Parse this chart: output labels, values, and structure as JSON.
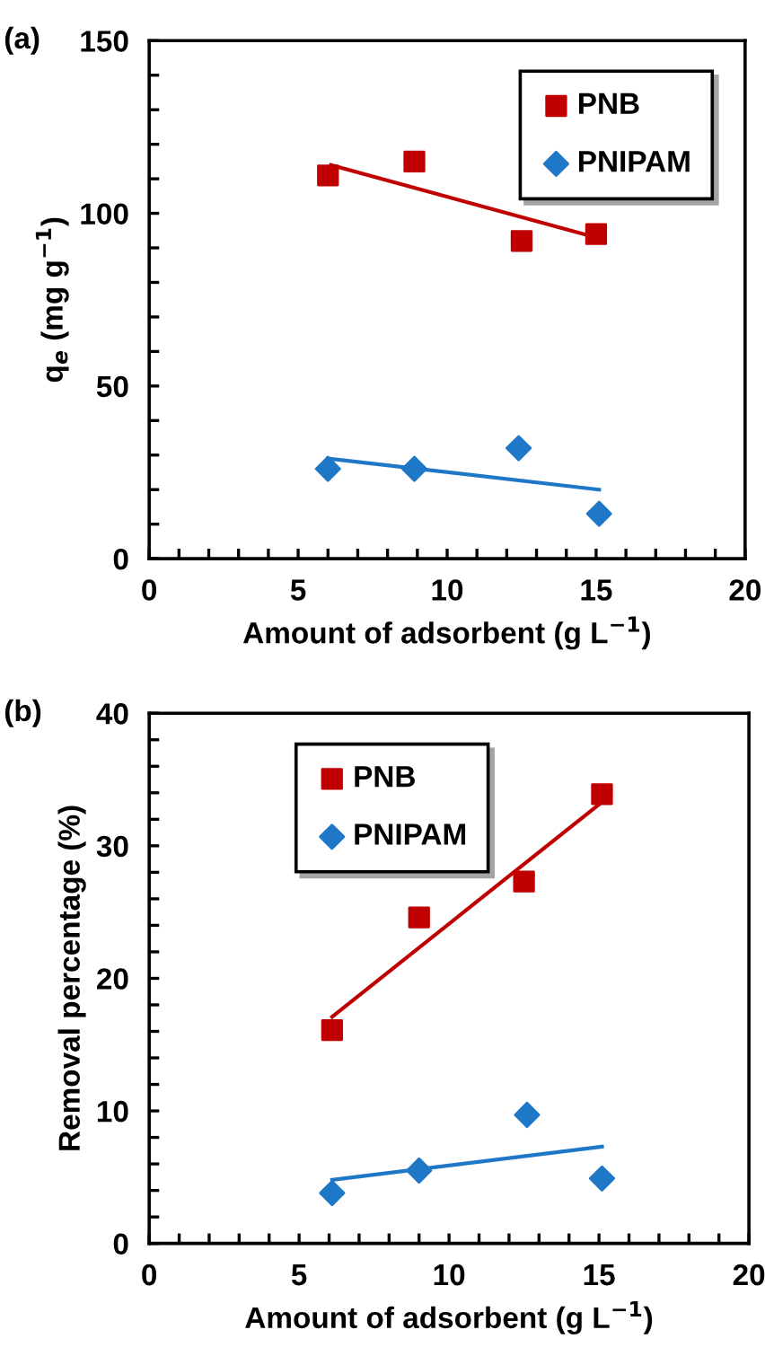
{
  "chart_data": [
    {
      "type": "scatter",
      "xlabel": "Amount of adsorbent (g L$^{−1}$)",
      "ylabel": "q$_{e}$ (mg g$^{−1}$)",
      "annotations": [
        "(a)"
      ],
      "xlim": [
        0,
        20
      ],
      "ylim": [
        0,
        150
      ],
      "xticks": [
        0,
        {
          "value": 1,
          "label": null
        },
        {
          "value": 2,
          "label": null
        },
        {
          "value": 3,
          "label": null
        },
        {
          "value": 4,
          "label": null
        },
        5,
        {
          "value": 6,
          "label": null
        },
        {
          "value": 7,
          "label": null
        },
        {
          "value": 8,
          "label": null
        },
        {
          "value": 9,
          "label": null
        },
        10,
        {
          "value": 11,
          "label": null
        },
        {
          "value": 12,
          "label": null
        },
        {
          "value": 13,
          "label": null
        },
        {
          "value": 14,
          "label": null
        },
        15,
        {
          "value": 16,
          "label": null
        },
        {
          "value": 17,
          "label": null
        },
        {
          "value": 18,
          "label": null
        },
        {
          "value": 19,
          "label": null
        },
        20
      ],
      "yticks": [
        0,
        {
          "value": 10,
          "label": null
        },
        {
          "value": 20,
          "label": null
        },
        {
          "value": 30,
          "label": null
        },
        {
          "value": 40,
          "label": null
        },
        50,
        {
          "value": 60,
          "label": null
        },
        {
          "value": 70,
          "label": null
        },
        {
          "value": 80,
          "label": null
        },
        {
          "value": 90,
          "label": null
        },
        100,
        {
          "value": 110,
          "label": null
        },
        {
          "value": 120,
          "label": null
        },
        {
          "value": 130,
          "label": null
        },
        {
          "value": 140,
          "label": null
        },
        150
      ],
      "grid": false,
      "legend": "top right",
      "series": [
        {
          "name": "PNB",
          "marker": "square",
          "color": "#c00000",
          "x": [
            6.0,
            8.9,
            12.5,
            15.0
          ],
          "values": [
            111,
            115,
            92,
            94
          ]
        },
        {
          "name": "PNIPAM",
          "marker": "diamond",
          "color": "#1f77c8",
          "x": [
            6.0,
            8.9,
            12.4,
            15.1
          ],
          "values": [
            26,
            26,
            32,
            13
          ]
        },
        {
          "type": "line",
          "marker": "none",
          "color": "#c00000",
          "x": [
            6.1,
            15.0
          ],
          "values": [
            114,
            93
          ]
        },
        {
          "type": "line",
          "marker": "none",
          "color": "#1f77c8",
          "x": [
            6.0,
            15.1
          ],
          "values": [
            29,
            20
          ]
        }
      ]
    },
    {
      "type": "scatter",
      "xlabel": "Amount of adsorbent (g L$^{−1}$)",
      "ylabel": "Removal percentage (%)",
      "annotations": [
        "(b)"
      ],
      "xlim": [
        0,
        20
      ],
      "ylim": [
        0,
        40
      ],
      "xticks": [
        0,
        {
          "value": 1,
          "label": null
        },
        {
          "value": 2,
          "label": null
        },
        {
          "value": 3,
          "label": null
        },
        {
          "value": 4,
          "label": null
        },
        5,
        {
          "value": 6,
          "label": null
        },
        {
          "value": 7,
          "label": null
        },
        {
          "value": 8,
          "label": null
        },
        {
          "value": 9,
          "label": null
        },
        10,
        {
          "value": 11,
          "label": null
        },
        {
          "value": 12,
          "label": null
        },
        {
          "value": 13,
          "label": null
        },
        {
          "value": 14,
          "label": null
        },
        15,
        {
          "value": 16,
          "label": null
        },
        {
          "value": 17,
          "label": null
        },
        {
          "value": 18,
          "label": null
        },
        {
          "value": 19,
          "label": null
        },
        20
      ],
      "yticks": [
        0,
        {
          "value": 2,
          "label": null
        },
        {
          "value": 4,
          "label": null
        },
        {
          "value": 6,
          "label": null
        },
        {
          "value": 8,
          "label": null
        },
        10,
        {
          "value": 12,
          "label": null
        },
        {
          "value": 14,
          "label": null
        },
        {
          "value": 16,
          "label": null
        },
        {
          "value": 18,
          "label": null
        },
        20,
        {
          "value": 22,
          "label": null
        },
        {
          "value": 24,
          "label": null
        },
        {
          "value": 26,
          "label": null
        },
        {
          "value": 28,
          "label": null
        },
        30,
        {
          "value": 32,
          "label": null
        },
        {
          "value": 34,
          "label": null
        },
        {
          "value": 36,
          "label": null
        },
        {
          "value": 38,
          "label": null
        },
        40
      ],
      "grid": false,
      "legend": "top left",
      "series": [
        {
          "name": "PNB",
          "marker": "square",
          "color": "#c00000",
          "x": [
            6.1,
            9.0,
            12.5,
            15.1
          ],
          "values": [
            16.1,
            24.6,
            27.3,
            33.9
          ]
        },
        {
          "name": "PNIPAM",
          "marker": "diamond",
          "color": "#1f77c8",
          "x": [
            6.1,
            9.0,
            12.6,
            15.1
          ],
          "values": [
            3.8,
            5.5,
            9.7,
            4.9
          ]
        },
        {
          "type": "line",
          "marker": "none",
          "color": "#c00000",
          "x": [
            6.1,
            15.1
          ],
          "values": [
            17.1,
            33.3
          ]
        },
        {
          "type": "line",
          "marker": "none",
          "color": "#1f77c8",
          "x": [
            6.1,
            15.1
          ],
          "values": [
            4.8,
            7.3
          ]
        }
      ]
    }
  ]
}
